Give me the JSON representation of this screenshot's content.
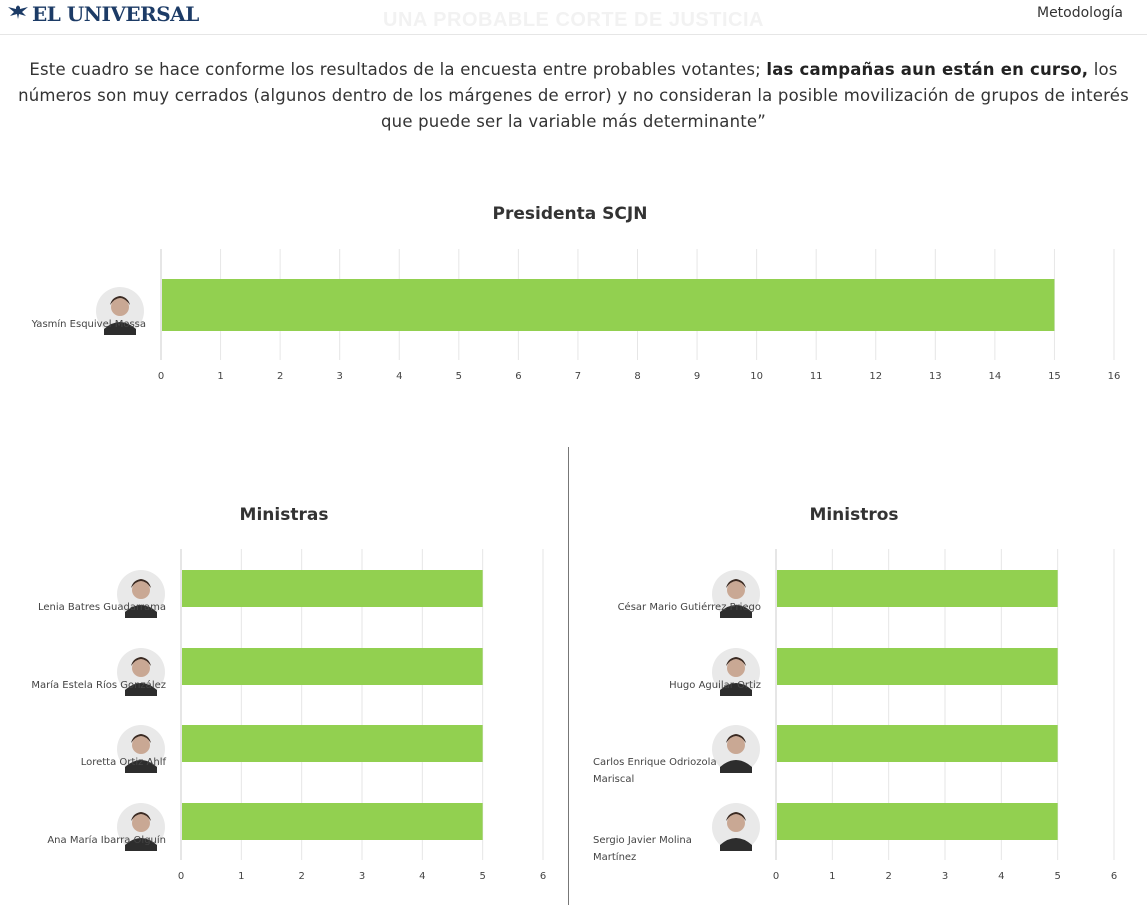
{
  "header": {
    "logo_text": "EL UNIVERSAL",
    "title": "UNA PROBABLE CORTE DE JUSTICIA",
    "methodology_link": "Metodología"
  },
  "intro": {
    "text_before": "Este cuadro se hace conforme los resultados de la encuesta entre probables votantes; ",
    "text_bold": "las campañas aun están en curso,",
    "text_after": " los números son muy cerrados (algunos dentro de los márgenes de error) y no consideran la posible movilización de grupos de interés que puede ser la variable más determinante”"
  },
  "colors": {
    "bar": "#92d050",
    "grid": "#e6e6e6",
    "brand": "#1c3b66"
  },
  "chart_data": [
    {
      "type": "bar",
      "orientation": "horizontal",
      "title": "Presidenta SCJN",
      "categories": [
        "Yasmín Esquivel Mossa"
      ],
      "values": [
        15
      ],
      "xlim": [
        0,
        16
      ],
      "ticks": [
        0,
        1,
        2,
        3,
        4,
        5,
        6,
        7,
        8,
        9,
        10,
        11,
        12,
        13,
        14,
        15,
        16
      ],
      "grid": true
    },
    {
      "type": "bar",
      "orientation": "horizontal",
      "title": "Ministras",
      "categories": [
        "Lenia Batres Guadarrama",
        "María Estela Ríos González",
        "Loretta Ortiz Ahlf",
        "Ana María Ibarra Olguín"
      ],
      "values": [
        5,
        5,
        5,
        5
      ],
      "xlim": [
        0,
        6
      ],
      "ticks": [
        0,
        1,
        2,
        3,
        4,
        5,
        6
      ],
      "grid": true
    },
    {
      "type": "bar",
      "orientation": "horizontal",
      "title": "Ministros",
      "categories": [
        "César Mario Gutiérrez Priego",
        "Hugo Aguilar Ortiz",
        "Carlos Enrique Odriozola Mariscal",
        "Sergio Javier Molina Martínez"
      ],
      "values": [
        5,
        5,
        5,
        5
      ],
      "xlim": [
        0,
        6
      ],
      "ticks": [
        0,
        1,
        2,
        3,
        4,
        5,
        6
      ],
      "grid": true
    }
  ]
}
